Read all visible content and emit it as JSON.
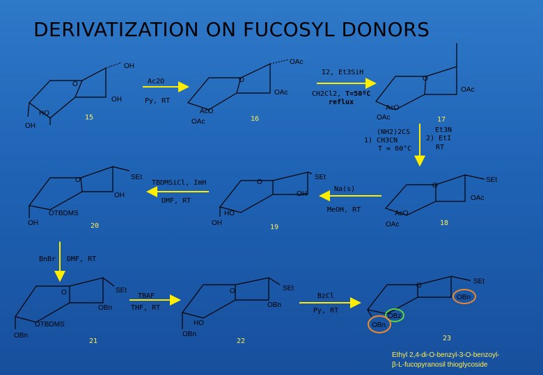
{
  "title": "DERIVATIZATION ON FUCOSYL DONORS",
  "compounds": {
    "c15": {
      "number": "15",
      "labels": {
        "oring": "O",
        "oh_top": "OH",
        "oh_right": "OH",
        "ho": "HO",
        "oh_left": "OH"
      }
    },
    "c16": {
      "number": "16",
      "labels": {
        "oring": "O",
        "oac_top": "OAc",
        "oac_right": "OAc",
        "aco": "AcO",
        "oac_bottom": "OAc"
      }
    },
    "c17": {
      "number": "17",
      "labels": {
        "oring": "O",
        "oac_right": "OAc",
        "aco": "AcO",
        "oac_bottom": "OAc"
      }
    },
    "c18": {
      "number": "18",
      "labels": {
        "oring": "O",
        "set": "SEt",
        "oac_right": "OAc",
        "aco": "AcO",
        "oac_bottom": "OAc"
      }
    },
    "c19": {
      "number": "19",
      "labels": {
        "oring": "O",
        "set": "SEt",
        "oh_right": "OH",
        "ho": "HO",
        "oh_bottom": "OH"
      }
    },
    "c20": {
      "number": "20",
      "labels": {
        "oring": "O",
        "set": "SEt",
        "oh_right": "OH",
        "otbdms": "OTBDMS",
        "oh_bottom": "OH"
      }
    },
    "c21": {
      "number": "21",
      "labels": {
        "oring": "O",
        "set": "SEt",
        "obn_right": "OBn",
        "otbdms": "OTBDMS",
        "obn_bottom": "OBn"
      }
    },
    "c22": {
      "number": "22",
      "labels": {
        "oring": "O",
        "set": "SEt",
        "obn_right": "OBn",
        "ho": "HO",
        "obn_bottom": "OBn"
      }
    },
    "c23": {
      "number": "23",
      "labels": {
        "oring": "O",
        "set": "SEt",
        "obn_right": "OBn",
        "obz": "OBz",
        "obn_bottom": "OBn"
      }
    }
  },
  "steps": {
    "s1": {
      "line1": "Ac2O",
      "line2": "Py, RT"
    },
    "s2": {
      "line1": "I2, Et3SiH",
      "line2a": "CH2Cl2, ",
      "line2b": "T=50ºC",
      "line3": "reflux"
    },
    "s3": {
      "a1": "(NH2)2CS",
      "a2": "1)  CH3CN",
      "a3": "T = 60°C",
      "b1": "Et3N",
      "b2": "2) EtI",
      "b3": "RT"
    },
    "s4": {
      "line1": "Na(s)",
      "line2": "MeOH, RT"
    },
    "s5": {
      "line1": "TBDMSiCl, ImH",
      "line2": "DMF, RT"
    },
    "s6": {
      "line1": "BnBr",
      "line2": "DMF, RT"
    },
    "s7": {
      "line1": "TBAF",
      "line2": "THF, RT"
    },
    "s8": {
      "line1": "BzCl",
      "line2": "Py, RT"
    }
  },
  "footnote": {
    "line1": "Ethyl 2,4-di-O-benzyl-3-O-benzoyl-",
    "line2": "β-L-fucopyranosil thioglycoside"
  },
  "colors": {
    "arrow": "#ffee00",
    "number": "#ffee55",
    "highlight_orange": "#f08a2a",
    "highlight_green": "#5fd13a"
  }
}
